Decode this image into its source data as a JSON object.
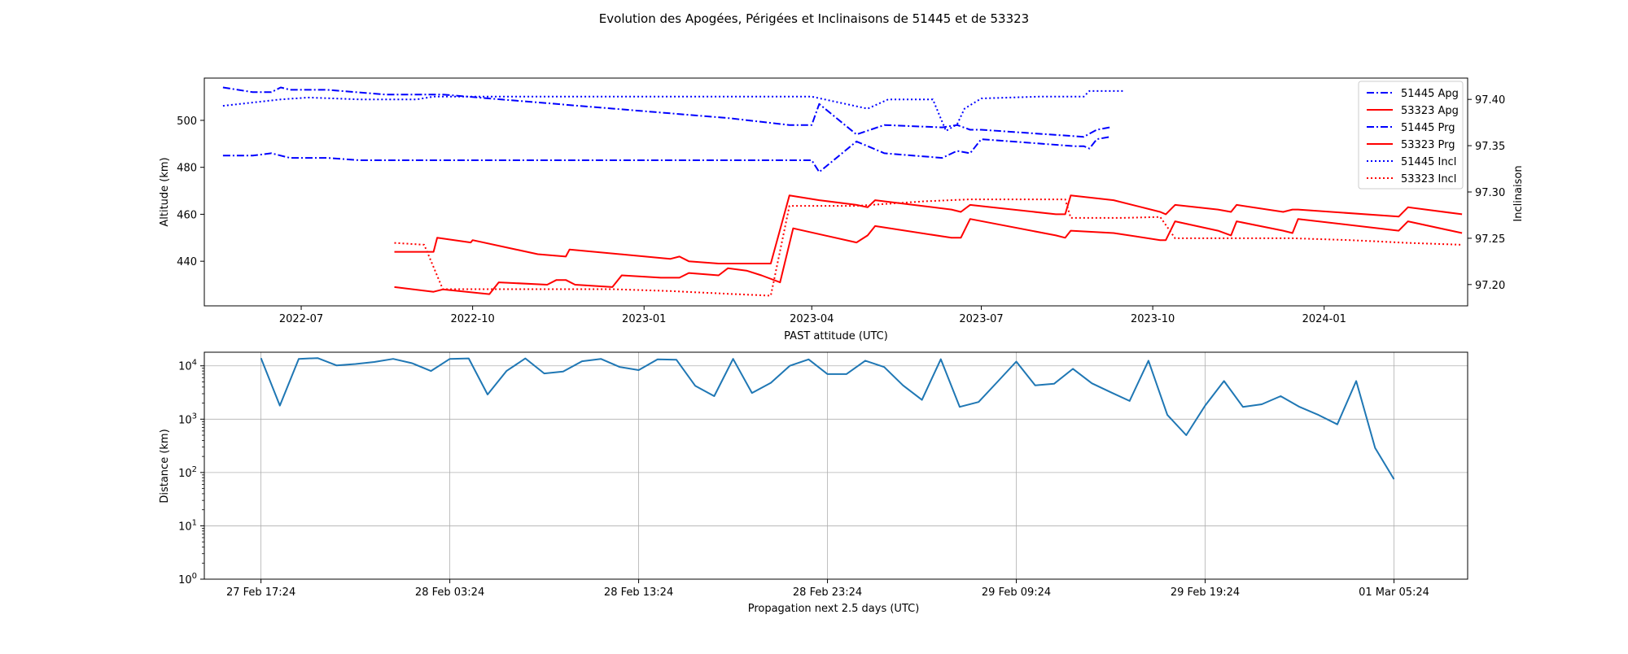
{
  "figure": {
    "title": "Evolution des Apogées, Périgées et Inclinaisons de 51445 et de 53323"
  },
  "chart_data": [
    {
      "type": "line",
      "xlabel": "PAST attitude (UTC)",
      "ylabel": "Altitude (km)",
      "y2label": "Inclinaison",
      "x_ticks": [
        "2022-07",
        "2022-10",
        "2023-01",
        "2023-04",
        "2023-07",
        "2023-10",
        "2024-01"
      ],
      "y_ticks": [
        "440",
        "460",
        "480",
        "500"
      ],
      "y2_ticks": [
        "97.20",
        "97.25",
        "97.30",
        "97.35",
        "97.40"
      ],
      "xlim": [
        "2022-05-10",
        "2024-03-18"
      ],
      "ylim": [
        421,
        518
      ],
      "y2lim": [
        97.177,
        97.423
      ],
      "grid": false,
      "legend_position": "top-right",
      "series": [
        {
          "name": "51445 Apg",
          "axis": "left",
          "color": "#0000ff",
          "style": "dashdot",
          "points": [
            [
              "2022-05-20",
              514
            ],
            [
              "2022-06-05",
              512
            ],
            [
              "2022-06-15",
              512
            ],
            [
              "2022-06-20",
              514
            ],
            [
              "2022-06-25",
              513
            ],
            [
              "2022-07-15",
              513
            ],
            [
              "2022-08-15",
              511
            ],
            [
              "2022-09-15",
              511
            ],
            [
              "2022-10-15",
              509
            ],
            [
              "2022-11-15",
              507
            ],
            [
              "2022-12-15",
              505
            ],
            [
              "2023-01-15",
              503
            ],
            [
              "2023-02-15",
              501
            ],
            [
              "2023-03-20",
              498
            ],
            [
              "2023-04-01",
              498
            ],
            [
              "2023-04-05",
              507
            ],
            [
              "2023-04-25",
              494
            ],
            [
              "2023-05-10",
              498
            ],
            [
              "2023-06-10",
              497
            ],
            [
              "2023-06-18",
              498
            ],
            [
              "2023-06-25",
              496
            ],
            [
              "2023-07-01",
              496
            ],
            [
              "2023-08-25",
              493
            ],
            [
              "2023-09-01",
              496
            ],
            [
              "2023-09-08",
              497
            ]
          ]
        },
        {
          "name": "53323 Apg",
          "axis": "left",
          "color": "#ff0000",
          "style": "solid",
          "points": [
            [
              "2022-08-20",
              444
            ],
            [
              "2022-09-01",
              444
            ],
            [
              "2022-09-10",
              444
            ],
            [
              "2022-09-12",
              450
            ],
            [
              "2022-09-30",
              448
            ],
            [
              "2022-10-01",
              449
            ],
            [
              "2022-11-05",
              443
            ],
            [
              "2022-11-20",
              442
            ],
            [
              "2022-11-22",
              445
            ],
            [
              "2023-01-15",
              441
            ],
            [
              "2023-01-20",
              442
            ],
            [
              "2023-01-25",
              440
            ],
            [
              "2023-02-10",
              439
            ],
            [
              "2023-02-15",
              439
            ],
            [
              "2023-03-10",
              439
            ],
            [
              "2023-03-20",
              468
            ],
            [
              "2023-04-05",
              466
            ],
            [
              "2023-04-25",
              464
            ],
            [
              "2023-05-01",
              463
            ],
            [
              "2023-05-05",
              466
            ],
            [
              "2023-06-15",
              462
            ],
            [
              "2023-06-20",
              461
            ],
            [
              "2023-06-25",
              464
            ],
            [
              "2023-08-10",
              460
            ],
            [
              "2023-08-15",
              460
            ],
            [
              "2023-08-18",
              468
            ],
            [
              "2023-09-10",
              466
            ],
            [
              "2023-10-05",
              461
            ],
            [
              "2023-10-08",
              460
            ],
            [
              "2023-10-13",
              464
            ],
            [
              "2023-11-05",
              462
            ],
            [
              "2023-11-12",
              461
            ],
            [
              "2023-11-15",
              464
            ],
            [
              "2023-12-10",
              461
            ],
            [
              "2023-12-15",
              462
            ],
            [
              "2023-12-18",
              462
            ],
            [
              "2024-02-10",
              459
            ],
            [
              "2024-02-15",
              463
            ],
            [
              "2024-03-15",
              460
            ]
          ]
        },
        {
          "name": "51445 Prg",
          "axis": "left",
          "color": "#0000ff",
          "style": "dashdot",
          "points": [
            [
              "2022-05-20",
              485
            ],
            [
              "2022-06-05",
              485
            ],
            [
              "2022-06-15",
              486
            ],
            [
              "2022-06-20",
              485
            ],
            [
              "2022-06-25",
              484
            ],
            [
              "2022-07-15",
              484
            ],
            [
              "2022-08-01",
              483
            ],
            [
              "2022-10-15",
              483
            ],
            [
              "2023-01-15",
              483
            ],
            [
              "2023-04-01",
              483
            ],
            [
              "2023-04-05",
              478
            ],
            [
              "2023-04-25",
              491
            ],
            [
              "2023-05-10",
              486
            ],
            [
              "2023-06-10",
              484
            ],
            [
              "2023-06-18",
              487
            ],
            [
              "2023-06-25",
              486
            ],
            [
              "2023-07-01",
              492
            ],
            [
              "2023-08-20",
              489
            ],
            [
              "2023-08-25",
              489
            ],
            [
              "2023-08-28",
              488
            ],
            [
              "2023-09-01",
              492
            ],
            [
              "2023-09-08",
              493
            ]
          ]
        },
        {
          "name": "53323 Prg",
          "axis": "left",
          "color": "#ff0000",
          "style": "solid",
          "points": [
            [
              "2022-08-20",
              429
            ],
            [
              "2022-09-10",
              427
            ],
            [
              "2022-09-15",
              428
            ],
            [
              "2022-10-10",
              426
            ],
            [
              "2022-10-15",
              431
            ],
            [
              "2022-11-10",
              430
            ],
            [
              "2022-11-15",
              432
            ],
            [
              "2022-11-20",
              432
            ],
            [
              "2022-11-25",
              430
            ],
            [
              "2022-12-15",
              429
            ],
            [
              "2022-12-20",
              434
            ],
            [
              "2023-01-10",
              433
            ],
            [
              "2023-01-20",
              433
            ],
            [
              "2023-01-25",
              435
            ],
            [
              "2023-02-10",
              434
            ],
            [
              "2023-02-15",
              437
            ],
            [
              "2023-02-25",
              436
            ],
            [
              "2023-03-05",
              434
            ],
            [
              "2023-03-15",
              431
            ],
            [
              "2023-03-22",
              454
            ],
            [
              "2023-04-25",
              448
            ],
            [
              "2023-05-01",
              451
            ],
            [
              "2023-05-05",
              455
            ],
            [
              "2023-06-15",
              450
            ],
            [
              "2023-06-20",
              450
            ],
            [
              "2023-06-25",
              458
            ],
            [
              "2023-08-10",
              451
            ],
            [
              "2023-08-15",
              450
            ],
            [
              "2023-08-18",
              453
            ],
            [
              "2023-09-10",
              452
            ],
            [
              "2023-10-05",
              449
            ],
            [
              "2023-10-08",
              449
            ],
            [
              "2023-10-13",
              457
            ],
            [
              "2023-11-05",
              453
            ],
            [
              "2023-11-12",
              451
            ],
            [
              "2023-11-15",
              457
            ],
            [
              "2023-12-10",
              453
            ],
            [
              "2023-12-15",
              452
            ],
            [
              "2023-12-18",
              458
            ],
            [
              "2024-02-10",
              453
            ],
            [
              "2024-02-15",
              457
            ],
            [
              "2024-03-15",
              452
            ]
          ]
        },
        {
          "name": "51445 Incl",
          "axis": "right",
          "color": "#0000ff",
          "style": "dotted",
          "points": [
            [
              "2022-05-20",
              97.393
            ],
            [
              "2022-06-20",
              97.4
            ],
            [
              "2022-07-05",
              97.402
            ],
            [
              "2022-08-01",
              97.4
            ],
            [
              "2022-09-01",
              97.4
            ],
            [
              "2022-09-10",
              97.403
            ],
            [
              "2022-10-15",
              97.403
            ],
            [
              "2023-01-15",
              97.403
            ],
            [
              "2023-04-01",
              97.403
            ],
            [
              "2023-05-01",
              97.39
            ],
            [
              "2023-05-12",
              97.4
            ],
            [
              "2023-06-05",
              97.4
            ],
            [
              "2023-06-12",
              97.366
            ],
            [
              "2023-06-18",
              97.373
            ],
            [
              "2023-06-22",
              97.39
            ],
            [
              "2023-07-01",
              97.401
            ],
            [
              "2023-08-01",
              97.403
            ],
            [
              "2023-08-25",
              97.403
            ],
            [
              "2023-08-28",
              97.409
            ],
            [
              "2023-09-15",
              97.409
            ]
          ]
        },
        {
          "name": "53323 Incl",
          "axis": "right",
          "color": "#ff0000",
          "style": "dotted",
          "points": [
            [
              "2022-08-20",
              97.245
            ],
            [
              "2022-09-05",
              97.243
            ],
            [
              "2022-09-15",
              97.195
            ],
            [
              "2022-10-15",
              97.195
            ],
            [
              "2022-12-15",
              97.195
            ],
            [
              "2023-01-15",
              97.193
            ],
            [
              "2023-02-15",
              97.19
            ],
            [
              "2023-03-10",
              97.188
            ],
            [
              "2023-03-20",
              97.285
            ],
            [
              "2023-04-25",
              97.285
            ],
            [
              "2023-06-01",
              97.29
            ],
            [
              "2023-06-25",
              97.292
            ],
            [
              "2023-08-15",
              97.292
            ],
            [
              "2023-08-18",
              97.272
            ],
            [
              "2023-09-15",
              97.272
            ],
            [
              "2023-10-05",
              97.273
            ],
            [
              "2023-10-13",
              97.25
            ],
            [
              "2023-11-15",
              97.25
            ],
            [
              "2023-12-15",
              97.25
            ],
            [
              "2024-01-15",
              97.248
            ],
            [
              "2024-02-15",
              97.245
            ],
            [
              "2024-03-15",
              97.243
            ]
          ]
        }
      ]
    },
    {
      "type": "line",
      "xlabel": "Propagation next 2.5 days (UTC)",
      "ylabel": "Distance (km)",
      "y_scale": "log",
      "x_ticks": [
        "27 Feb 17:24",
        "28 Feb 03:24",
        "28 Feb 13:24",
        "28 Feb 23:24",
        "29 Feb 09:24",
        "29 Feb 19:24",
        "01 Mar 05:24"
      ],
      "y_ticks": [
        "10^0",
        "10^1",
        "10^2",
        "10^3",
        "10^4"
      ],
      "ylim": [
        1,
        18000
      ],
      "xlim_hours_from_first_tick": [
        -3,
        63.9
      ],
      "grid": true,
      "series": [
        {
          "color": "#1f77b4",
          "x_hours": [
            0,
            1,
            2,
            3,
            4,
            5,
            6,
            7,
            8,
            9,
            10,
            11,
            12,
            13,
            14,
            15,
            16,
            17,
            18,
            19,
            20,
            21,
            22,
            23,
            24,
            25,
            26,
            27,
            28,
            29,
            30,
            31,
            32,
            33,
            34,
            35,
            36,
            37,
            38,
            39,
            40,
            41,
            42,
            43,
            44,
            45,
            46,
            47,
            48,
            49,
            50,
            51,
            52,
            53,
            54,
            55,
            56,
            57,
            58,
            59,
            60
          ],
          "distance_km": [
            14000,
            1800,
            13500,
            14000,
            10200,
            10800,
            11800,
            13500,
            11200,
            8000,
            13500,
            13800,
            2900,
            8000,
            13800,
            7200,
            7800,
            12200,
            13500,
            9500,
            8300,
            13200,
            13000,
            4200,
            2700,
            13500,
            3100,
            4800,
            10000,
            13200,
            7000,
            7000,
            12500,
            9500,
            4300,
            2300,
            13300,
            1700,
            2100,
            5000,
            12000,
            4300,
            4600,
            8800,
            4700,
            3200,
            2200,
            12500,
            1200,
            500,
            1800,
            5200,
            1700,
            1900,
            2700,
            1700,
            1200,
            800,
            5200,
            290,
            75
          ]
        }
      ]
    }
  ]
}
